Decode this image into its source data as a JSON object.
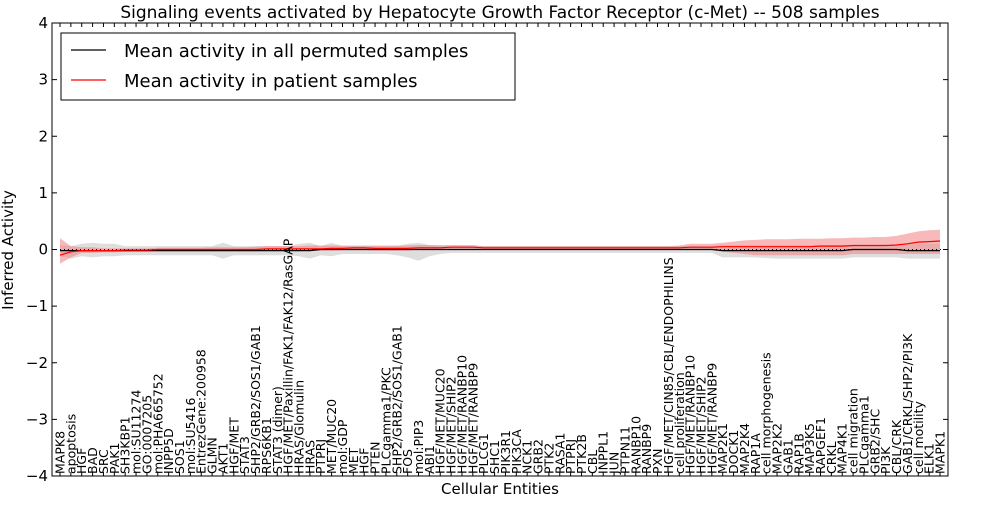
{
  "chart_data": {
    "type": "line",
    "title": "Signaling events activated by Hepatocyte Growth Factor Receptor (c-Met) -- 508 samples",
    "xlabel": "Cellular Entities",
    "ylabel": "Inferred Activity",
    "ylim": [
      -4,
      4
    ],
    "yticks": [
      -4,
      -3,
      -2,
      -1,
      0,
      1,
      2,
      3,
      4
    ],
    "ytick_labels": [
      "−4",
      "−3",
      "−2",
      "−1",
      "0",
      "1",
      "2",
      "3",
      "4"
    ],
    "legend_position": "top-left",
    "colors": {
      "permuted": "#000000",
      "patient": "#ff0000",
      "permuted_band": "#c8c8c8",
      "patient_band": "#f08080"
    },
    "categories": [
      "MAPK8",
      "apoptosis",
      "HGF",
      "BAD",
      "SRC",
      "PAK1",
      "SH3KBP1",
      "mol:SU11274",
      "GO:0007205",
      "mol:PHA665752",
      "INPP5D",
      "SOS1",
      "mol:SU5416",
      "EntrezGene:200958",
      "GLMN",
      "AKT1",
      "HGF/MET",
      "STAT3",
      "SHP2/GRB2/SOS1/GAB1",
      "RPS6KB1",
      "STAT3 (dimer)",
      "HGF/MET/Paxillin/FAK1/FAK12/RasGAP",
      "HRAS/Glomulin",
      "HRAS",
      "PTPRJ",
      "MET/MUC20",
      "mol:GDP",
      "MET",
      "HGF",
      "PTEN",
      "PLCgamma1/PKC",
      "SHP2/GRB2/SOS1/GAB1",
      "FOS",
      "mol:PIP3",
      "ABI1",
      "HGF/MET/MUC20",
      "HGF/MET/SHIP2",
      "HGF/MET/RANBP10",
      "HGF/MET/RANBP9",
      "PLCG1",
      "SHC1",
      "PIK3R1",
      "PIK3CA",
      "NCK1",
      "GRB2",
      "PTK2",
      "RASA1",
      "PTPRJ",
      "PTK2B",
      "CBL",
      "INPPL1",
      "JUN",
      "PTPN11",
      "RANBP10",
      "RANBP9",
      "PXN",
      "HGF/MET/CIN85/CBL/ENDOPHILINS",
      "cell proliferation",
      "HGF/MET/RANBP10",
      "HGF/MET/SHIP2",
      "HGF/MET/RANBP9",
      "MAP2K1",
      "DOCK1",
      "MAP2K4",
      "RAP1A",
      "cell morphogenesis",
      "MAP2K2",
      "GAB1",
      "RAP1B",
      "MAP3K5",
      "RAPGEF1",
      "CRKL",
      "MAP4K1",
      "cell migration",
      "PLCgamma1",
      "GRB2/SHC",
      "PI3K",
      "CBL/CRK",
      "GAB1/CRKL/SHP2/PI3K",
      "cell motility",
      "ELK1",
      "MAPK1"
    ],
    "series": [
      {
        "name": "Mean activity in all permuted samples",
        "values": [
          -0.02,
          -0.02,
          -0.02,
          -0.02,
          -0.02,
          -0.02,
          -0.02,
          -0.02,
          -0.02,
          -0.02,
          -0.02,
          -0.02,
          -0.02,
          -0.02,
          -0.02,
          -0.02,
          -0.02,
          -0.02,
          -0.02,
          -0.02,
          -0.02,
          -0.02,
          -0.02,
          -0.02,
          0.0,
          0.0,
          0.0,
          0.0,
          0.0,
          0.0,
          0.0,
          0.0,
          0.0,
          0.0,
          0.0,
          0.0,
          0.0,
          0.0,
          0.0,
          0.0,
          0.0,
          0.0,
          0.0,
          0.0,
          0.0,
          0.0,
          0.0,
          0.0,
          0.0,
          0.0,
          0.0,
          0.0,
          0.0,
          0.0,
          0.0,
          0.0,
          0.0,
          0.0,
          0.0,
          0.0,
          0.0,
          -0.02,
          -0.02,
          -0.02,
          -0.02,
          -0.02,
          -0.02,
          -0.02,
          -0.02,
          -0.02,
          -0.02,
          -0.02,
          -0.02,
          0.0,
          0.0,
          0.0,
          0.0,
          0.0,
          -0.02,
          -0.02,
          -0.02,
          -0.02
        ],
        "lower": [
          -0.12,
          -0.16,
          -0.12,
          -0.14,
          -0.12,
          -0.12,
          -0.1,
          -0.1,
          -0.1,
          -0.1,
          -0.1,
          -0.1,
          -0.1,
          -0.1,
          -0.1,
          -0.16,
          -0.1,
          -0.1,
          -0.1,
          -0.1,
          -0.1,
          -0.1,
          -0.12,
          -0.16,
          -0.1,
          -0.12,
          -0.08,
          -0.08,
          -0.08,
          -0.08,
          -0.08,
          -0.1,
          -0.14,
          -0.2,
          -0.12,
          -0.08,
          -0.06,
          -0.06,
          -0.06,
          -0.06,
          -0.06,
          -0.06,
          -0.06,
          -0.06,
          -0.06,
          -0.06,
          -0.06,
          -0.06,
          -0.06,
          -0.06,
          -0.06,
          -0.06,
          -0.06,
          -0.06,
          -0.06,
          -0.06,
          -0.06,
          -0.06,
          -0.06,
          -0.06,
          -0.06,
          -0.14,
          -0.14,
          -0.14,
          -0.14,
          -0.15,
          -0.16,
          -0.16,
          -0.16,
          -0.16,
          -0.16,
          -0.16,
          -0.16,
          -0.14,
          -0.14,
          -0.14,
          -0.14,
          -0.14,
          -0.16,
          -0.16,
          -0.16,
          -0.16
        ],
        "upper": [
          0.08,
          0.06,
          0.1,
          0.12,
          0.1,
          0.1,
          0.06,
          0.06,
          0.06,
          0.06,
          0.06,
          0.06,
          0.06,
          0.06,
          0.06,
          0.12,
          0.06,
          0.06,
          0.06,
          0.06,
          0.06,
          0.06,
          0.1,
          0.12,
          0.06,
          0.12,
          0.06,
          0.06,
          0.06,
          0.06,
          0.06,
          0.06,
          0.1,
          0.12,
          0.08,
          0.06,
          0.06,
          0.06,
          0.06,
          0.06,
          0.06,
          0.06,
          0.06,
          0.06,
          0.06,
          0.06,
          0.06,
          0.06,
          0.06,
          0.06,
          0.06,
          0.06,
          0.06,
          0.06,
          0.06,
          0.06,
          0.06,
          0.06,
          0.06,
          0.06,
          0.06,
          0.08,
          0.08,
          0.08,
          0.08,
          0.08,
          0.08,
          0.08,
          0.08,
          0.08,
          0.08,
          0.08,
          0.08,
          0.08,
          0.08,
          0.08,
          0.08,
          0.08,
          0.1,
          0.1,
          0.1,
          0.1
        ]
      },
      {
        "name": "Mean activity in patient samples",
        "values": [
          -0.1,
          -0.04,
          -0.02,
          -0.02,
          -0.02,
          -0.02,
          -0.01,
          -0.01,
          -0.01,
          0.0,
          0.0,
          0.0,
          0.0,
          0.0,
          0.0,
          0.0,
          0.0,
          0.0,
          0.0,
          0.01,
          0.01,
          0.01,
          0.01,
          0.01,
          0.01,
          0.02,
          0.02,
          0.03,
          0.03,
          0.02,
          0.02,
          0.02,
          0.02,
          0.03,
          0.03,
          0.03,
          0.04,
          0.04,
          0.04,
          0.03,
          0.03,
          0.03,
          0.03,
          0.03,
          0.03,
          0.03,
          0.03,
          0.03,
          0.03,
          0.03,
          0.03,
          0.03,
          0.03,
          0.03,
          0.03,
          0.03,
          0.03,
          0.03,
          0.04,
          0.04,
          0.04,
          0.05,
          0.05,
          0.05,
          0.05,
          0.05,
          0.05,
          0.05,
          0.05,
          0.05,
          0.06,
          0.06,
          0.06,
          0.07,
          0.07,
          0.07,
          0.07,
          0.08,
          0.1,
          0.13,
          0.14,
          0.15
        ],
        "lower": [
          -0.25,
          -0.14,
          -0.06,
          -0.06,
          -0.05,
          -0.05,
          -0.04,
          -0.04,
          -0.04,
          -0.03,
          -0.03,
          -0.03,
          -0.03,
          -0.03,
          -0.03,
          -0.03,
          -0.03,
          -0.03,
          -0.03,
          -0.02,
          -0.02,
          -0.02,
          -0.02,
          -0.02,
          -0.02,
          -0.02,
          -0.01,
          -0.01,
          -0.01,
          -0.02,
          -0.02,
          -0.02,
          -0.02,
          0.0,
          0.0,
          0.0,
          0.01,
          0.01,
          0.01,
          0.0,
          0.0,
          0.0,
          0.0,
          0.0,
          0.0,
          0.0,
          0.0,
          0.0,
          0.0,
          0.0,
          0.0,
          0.0,
          0.0,
          0.0,
          0.0,
          0.0,
          0.0,
          0.0,
          -0.01,
          -0.01,
          -0.01,
          -0.04,
          -0.06,
          -0.08,
          -0.1,
          -0.1,
          -0.1,
          -0.1,
          -0.1,
          -0.1,
          -0.1,
          -0.1,
          -0.1,
          -0.08,
          -0.08,
          -0.08,
          -0.08,
          -0.08,
          -0.08,
          -0.08,
          -0.08,
          -0.08
        ],
        "upper": [
          0.2,
          0.06,
          0.04,
          0.04,
          0.02,
          0.02,
          0.02,
          0.02,
          0.02,
          0.03,
          0.03,
          0.03,
          0.03,
          0.03,
          0.04,
          0.04,
          0.04,
          0.04,
          0.05,
          0.06,
          0.06,
          0.06,
          0.06,
          0.07,
          0.07,
          0.07,
          0.07,
          0.07,
          0.07,
          0.07,
          0.07,
          0.07,
          0.07,
          0.08,
          0.08,
          0.08,
          0.08,
          0.08,
          0.08,
          0.06,
          0.06,
          0.06,
          0.06,
          0.06,
          0.06,
          0.06,
          0.06,
          0.06,
          0.06,
          0.06,
          0.06,
          0.06,
          0.06,
          0.06,
          0.06,
          0.06,
          0.06,
          0.07,
          0.1,
          0.1,
          0.1,
          0.12,
          0.14,
          0.16,
          0.17,
          0.18,
          0.18,
          0.18,
          0.19,
          0.19,
          0.19,
          0.2,
          0.2,
          0.21,
          0.21,
          0.22,
          0.22,
          0.24,
          0.28,
          0.32,
          0.34,
          0.35
        ]
      }
    ]
  }
}
